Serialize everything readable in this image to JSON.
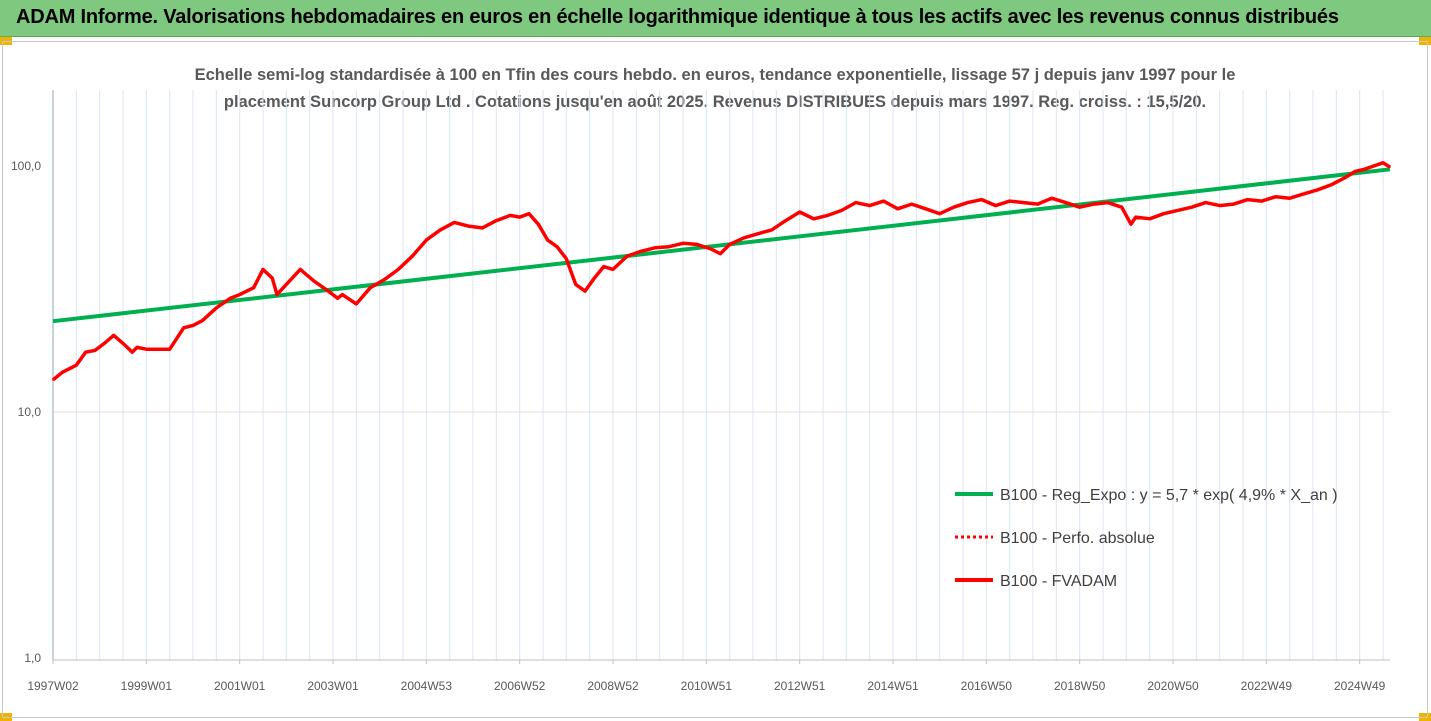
{
  "banner": {
    "title": "ADAM Informe. Valorisations hebdomadaires en euros en échelle logarithmique identique à tous les actifs avec les revenus connus distribués"
  },
  "colors": {
    "banner_bg": "#7fc87f",
    "regression_line": "#00b050",
    "series_line": "#ff0000",
    "gridline": "#d9e6f2",
    "axis_text": "#595959"
  },
  "chart_data": {
    "type": "line",
    "title_line1": "Echelle semi-log standardisée à 100 en Tfin des cours hebdo. en euros, tendance exponentielle, lissage 57 j depuis janv 1997 pour le",
    "title_line2": "placement Suncorp Group Ltd . Cotations jusqu'en août 2025. Revenus DISTRIBUES depuis mars 1997. Reg. croiss. : 15,5/20.",
    "y_scale": "log",
    "ylim": [
      1,
      100
    ],
    "y_ticks": [
      {
        "value": 100,
        "label": "100,0"
      },
      {
        "value": 10,
        "label": "10,0"
      },
      {
        "value": 1,
        "label": "1,0"
      }
    ],
    "xlim": [
      1997.0,
      2025.65
    ],
    "x_ticks": [
      {
        "value": 1997.0,
        "label": "1997W02"
      },
      {
        "value": 1999.0,
        "label": "1999W01"
      },
      {
        "value": 2001.0,
        "label": "2001W01"
      },
      {
        "value": 2003.0,
        "label": "2003W01"
      },
      {
        "value": 2005.0,
        "label": "2004W53"
      },
      {
        "value": 2007.0,
        "label": "2006W52"
      },
      {
        "value": 2009.0,
        "label": "2008W52"
      },
      {
        "value": 2011.0,
        "label": "2010W51"
      },
      {
        "value": 2013.0,
        "label": "2012W51"
      },
      {
        "value": 2015.0,
        "label": "2014W51"
      },
      {
        "value": 2017.0,
        "label": "2016W50"
      },
      {
        "value": 2019.0,
        "label": "2018W50"
      },
      {
        "value": 2021.0,
        "label": "2020W50"
      },
      {
        "value": 2023.0,
        "label": "2022W49"
      },
      {
        "value": 2025.0,
        "label": "2024W49"
      }
    ],
    "grid": "vertical",
    "legend_position": "right",
    "series": [
      {
        "name": "B100 - Reg_Expo : y = 5,7 * exp( 4,9% *  X_an )",
        "style": "solid",
        "color": "#00b050",
        "x": [
          1997.0,
          2025.65
        ],
        "y": [
          23.4,
          97.0
        ]
      },
      {
        "name": "B100 - Perfo. absolue",
        "style": "dotted",
        "color": "#ff0000",
        "x": [],
        "y": []
      },
      {
        "name": "B100 - FVADAM",
        "style": "solid",
        "color": "#ff0000",
        "x": [
          1997.0,
          1997.2,
          1997.5,
          1997.7,
          1997.9,
          1998.1,
          1998.3,
          1998.5,
          1998.7,
          1998.8,
          1999.0,
          1999.2,
          1999.5,
          1999.8,
          2000.0,
          2000.2,
          2000.5,
          2000.8,
          2001.0,
          2001.3,
          2001.5,
          2001.7,
          2001.8,
          2002.0,
          2002.3,
          2002.6,
          2002.9,
          2003.1,
          2003.2,
          2003.5,
          2003.8,
          2004.1,
          2004.4,
          2004.7,
          2005.0,
          2005.3,
          2005.6,
          2005.9,
          2006.2,
          2006.5,
          2006.8,
          2007.0,
          2007.2,
          2007.4,
          2007.6,
          2007.8,
          2008.0,
          2008.2,
          2008.4,
          2008.6,
          2008.8,
          2009.0,
          2009.3,
          2009.6,
          2009.9,
          2010.2,
          2010.5,
          2010.8,
          2011.1,
          2011.3,
          2011.5,
          2011.8,
          2012.1,
          2012.4,
          2012.7,
          2013.0,
          2013.3,
          2013.6,
          2013.9,
          2014.2,
          2014.5,
          2014.8,
          2015.1,
          2015.4,
          2015.7,
          2016.0,
          2016.3,
          2016.6,
          2016.9,
          2017.2,
          2017.5,
          2017.8,
          2018.1,
          2018.4,
          2018.7,
          2019.0,
          2019.3,
          2019.6,
          2019.9,
          2020.1,
          2020.2,
          2020.5,
          2020.8,
          2021.1,
          2021.4,
          2021.7,
          2022.0,
          2022.3,
          2022.6,
          2022.9,
          2023.2,
          2023.5,
          2023.8,
          2024.1,
          2024.4,
          2024.7,
          2024.9,
          2025.1,
          2025.3,
          2025.5,
          2025.65
        ],
        "y": [
          13.5,
          14.5,
          15.5,
          17.5,
          17.8,
          19.0,
          20.5,
          19.0,
          17.5,
          18.3,
          18.0,
          18.0,
          18.0,
          22.0,
          22.5,
          23.5,
          26.5,
          29.0,
          30.0,
          32.0,
          38.0,
          35.0,
          30.0,
          33.0,
          38.0,
          34.0,
          31.0,
          29.0,
          30.0,
          27.5,
          32.0,
          34.5,
          38.0,
          43.0,
          50.0,
          55.0,
          59.0,
          57.0,
          56.0,
          60.0,
          63.0,
          62.0,
          64.0,
          58.0,
          50.0,
          47.0,
          42.0,
          33.0,
          31.0,
          35.0,
          39.0,
          38.0,
          43.0,
          45.0,
          46.5,
          47.0,
          48.5,
          48.0,
          46.0,
          44.0,
          48.0,
          51.0,
          53.0,
          55.0,
          60.0,
          65.0,
          61.0,
          63.0,
          66.0,
          71.0,
          69.0,
          72.0,
          67.0,
          70.0,
          67.0,
          64.0,
          68.0,
          71.0,
          73.0,
          69.0,
          72.0,
          71.0,
          70.0,
          74.0,
          71.0,
          68.0,
          70.0,
          71.0,
          68.0,
          58.0,
          62.0,
          61.0,
          64.0,
          66.0,
          68.0,
          71.0,
          69.0,
          70.0,
          73.0,
          72.0,
          75.0,
          74.0,
          77.0,
          80.0,
          84.0,
          90.0,
          95.0,
          97.0,
          100.0,
          103.0,
          99.0
        ]
      }
    ]
  }
}
